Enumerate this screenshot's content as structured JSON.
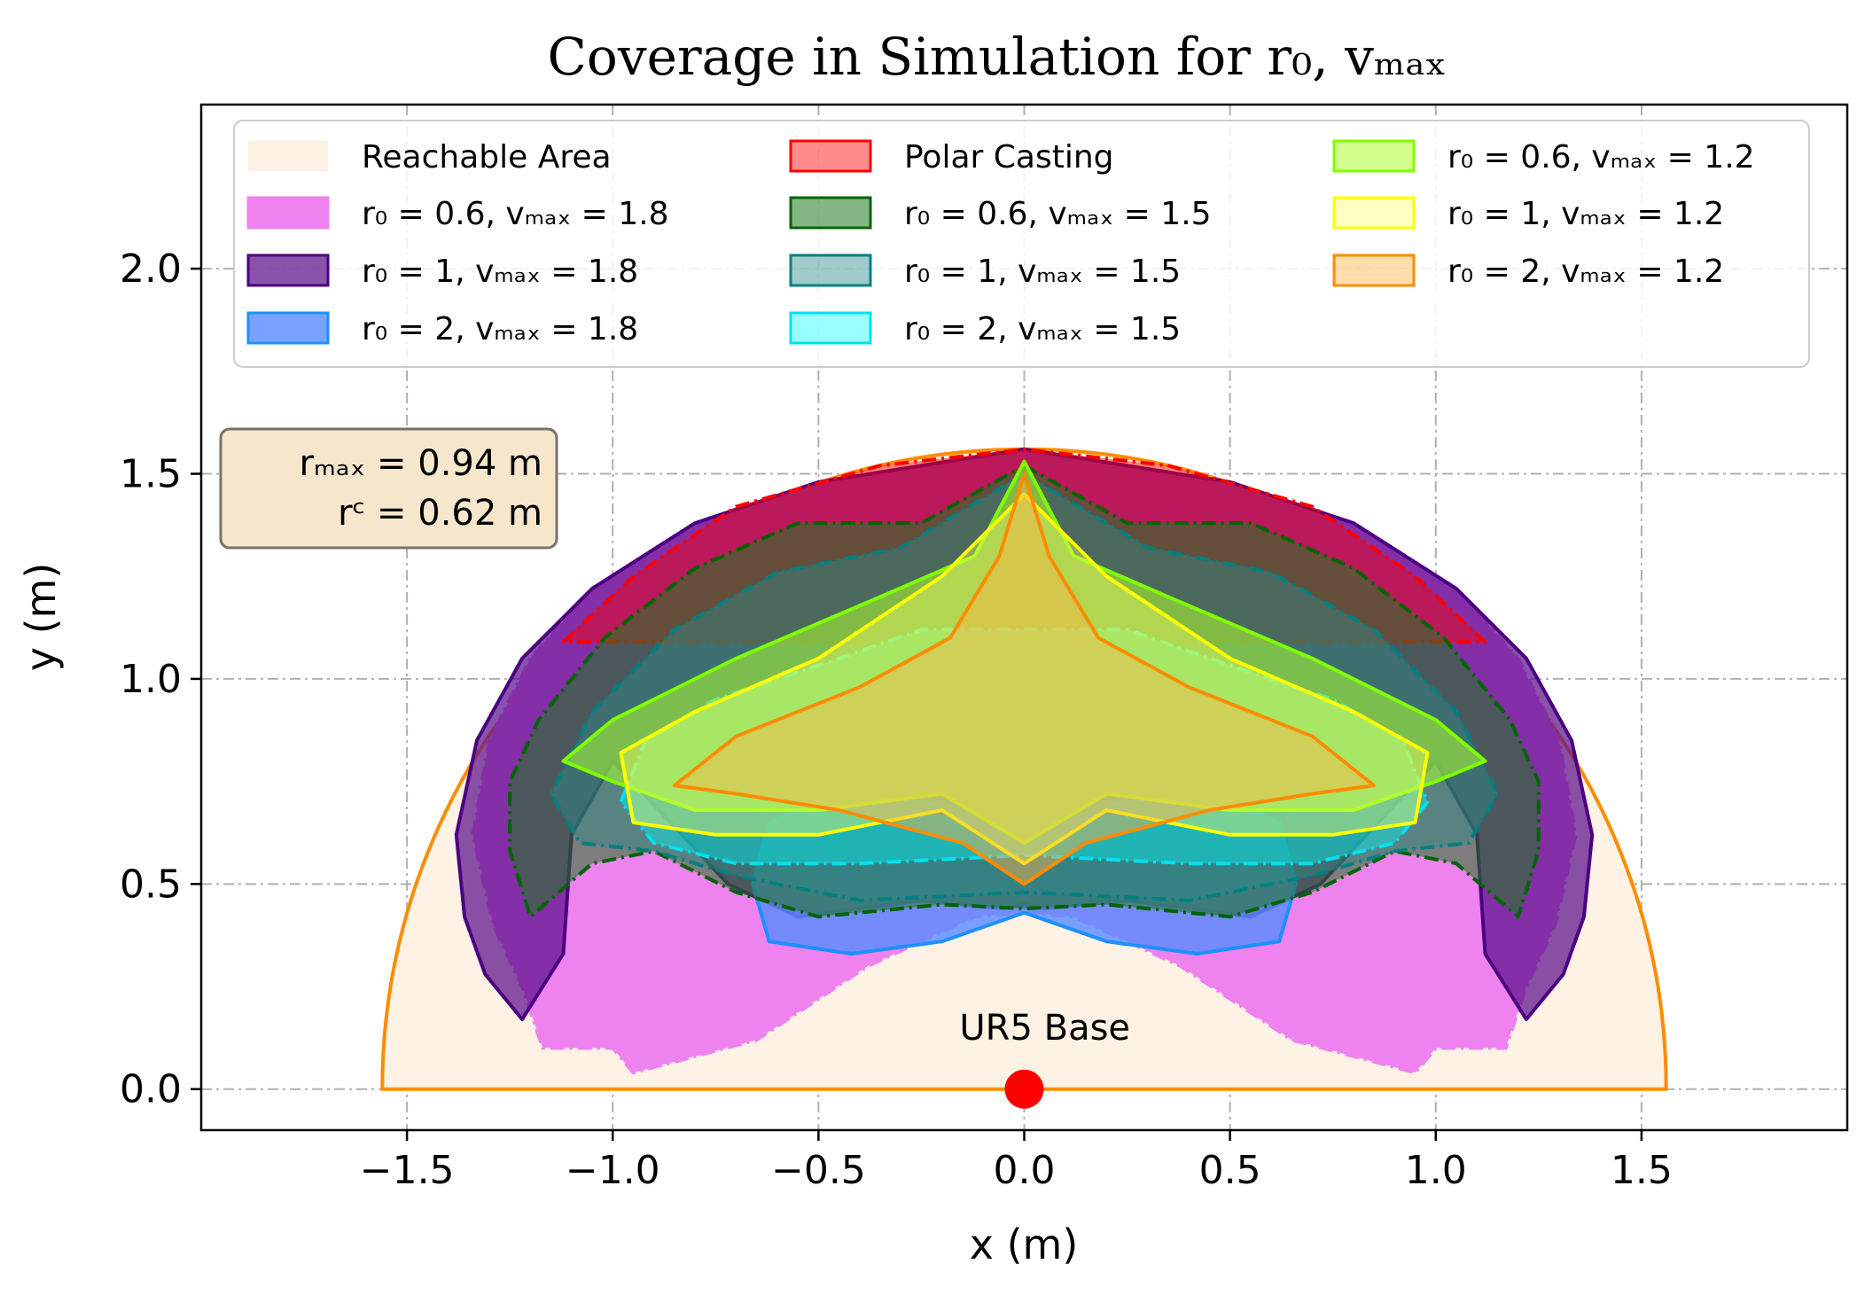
{
  "chart_data": {
    "type": "area",
    "title": "Coverage in Simulation for r₀, vₘₐₓ",
    "xlabel": "x (m)",
    "ylabel": "y (m)",
    "xlim": [
      -2.0,
      2.0
    ],
    "ylim": [
      -0.1,
      2.4
    ],
    "xticks": [
      -1.5,
      -1.0,
      -0.5,
      0.0,
      0.5,
      1.0,
      1.5
    ],
    "xtick_labels": [
      "−1.5",
      "−1.0",
      "−0.5",
      "0.0",
      "0.5",
      "1.0",
      "1.5"
    ],
    "yticks": [
      0.0,
      0.5,
      1.0,
      1.5,
      2.0
    ],
    "ytick_labels": [
      "0.0",
      "0.5",
      "1.0",
      "1.5",
      "2.0"
    ],
    "grid": true,
    "legend_position": "top",
    "annotation_box": [
      "rₘₐₓ = 0.94 m",
      "rᶜ = 0.62 m"
    ],
    "base_label": "UR5 Base",
    "base_point": [
      0.0,
      0.0
    ],
    "colors": {
      "reachable_fill": "#fdf2e3",
      "reachable_edge": "#ff8c00",
      "base_point": "#ff0000",
      "annotation_box_fill": "#f5e6cc"
    },
    "series": [
      {
        "name": "Reachable Area",
        "style": "semicircle",
        "radius": 1.56,
        "fill": "#fdf2e3",
        "edge": "#ff8c00",
        "opacity": 1.0,
        "dash": "solid",
        "points": []
      },
      {
        "name": "r₀ = 0.6, vₘₐₓ = 1.8",
        "fill": "#ee82ee",
        "edge": "#ee82ee",
        "opacity": 1.0,
        "dash": "dashdot",
        "points": [
          [
            0,
            1.56
          ],
          [
            0.5,
            1.48
          ],
          [
            0.8,
            1.38
          ],
          [
            1.05,
            1.22
          ],
          [
            1.2,
            1.05
          ],
          [
            1.3,
            0.85
          ],
          [
            1.34,
            0.62
          ],
          [
            1.29,
            0.4
          ],
          [
            1.22,
            0.25
          ],
          [
            1.17,
            0.1
          ],
          [
            1.0,
            0.1
          ],
          [
            0.95,
            0.04
          ],
          [
            0.65,
            0.12
          ],
          [
            0.38,
            0.3
          ],
          [
            0.12,
            0.42
          ],
          [
            0,
            0.43
          ],
          [
            -0.12,
            0.42
          ],
          [
            -0.38,
            0.3
          ],
          [
            -0.65,
            0.12
          ],
          [
            -0.95,
            0.04
          ],
          [
            -1.0,
            0.1
          ],
          [
            -1.17,
            0.1
          ],
          [
            -1.22,
            0.25
          ],
          [
            -1.29,
            0.4
          ],
          [
            -1.34,
            0.62
          ],
          [
            -1.3,
            0.85
          ],
          [
            -1.2,
            1.05
          ],
          [
            -1.05,
            1.22
          ],
          [
            -0.8,
            1.38
          ],
          [
            -0.5,
            1.48
          ]
        ]
      },
      {
        "name": "r₀ = 1, vₘₐₓ = 1.8",
        "fill": "#5b0f8c",
        "edge": "#4b0082",
        "opacity": 0.72,
        "dash": "solid",
        "points": [
          [
            0,
            1.56
          ],
          [
            0.5,
            1.48
          ],
          [
            0.8,
            1.38
          ],
          [
            1.05,
            1.22
          ],
          [
            1.22,
            1.05
          ],
          [
            1.33,
            0.85
          ],
          [
            1.38,
            0.62
          ],
          [
            1.36,
            0.42
          ],
          [
            1.31,
            0.28
          ],
          [
            1.22,
            0.17
          ],
          [
            1.12,
            0.33
          ],
          [
            1.1,
            0.62
          ],
          [
            1.0,
            0.8
          ],
          [
            0.72,
            0.5
          ],
          [
            0.55,
            0.42
          ],
          [
            0.25,
            0.46
          ],
          [
            0.05,
            0.44
          ],
          [
            0,
            0.45
          ],
          [
            -0.05,
            0.44
          ],
          [
            -0.25,
            0.46
          ],
          [
            -0.55,
            0.42
          ],
          [
            -0.72,
            0.5
          ],
          [
            -1.0,
            0.8
          ],
          [
            -1.1,
            0.62
          ],
          [
            -1.12,
            0.33
          ],
          [
            -1.22,
            0.17
          ],
          [
            -1.31,
            0.28
          ],
          [
            -1.36,
            0.42
          ],
          [
            -1.38,
            0.62
          ],
          [
            -1.33,
            0.85
          ],
          [
            -1.22,
            1.05
          ],
          [
            -1.05,
            1.22
          ],
          [
            -0.8,
            1.38
          ],
          [
            -0.5,
            1.48
          ]
        ]
      },
      {
        "name": "r₀ = 2, vₘₐₓ = 1.8",
        "fill": "#5a8dff",
        "edge": "#1e90ff",
        "opacity": 0.82,
        "dash": "solid",
        "points": [
          [
            0,
            0.43
          ],
          [
            0.2,
            0.36
          ],
          [
            0.42,
            0.33
          ],
          [
            0.62,
            0.36
          ],
          [
            0.66,
            0.5
          ],
          [
            0.62,
            0.65
          ],
          [
            0.45,
            0.72
          ],
          [
            0.25,
            0.7
          ],
          [
            0,
            0.66
          ],
          [
            -0.25,
            0.7
          ],
          [
            -0.45,
            0.72
          ],
          [
            -0.62,
            0.65
          ],
          [
            -0.66,
            0.5
          ],
          [
            -0.62,
            0.36
          ],
          [
            -0.42,
            0.33
          ],
          [
            -0.2,
            0.36
          ]
        ]
      },
      {
        "name": "Polar Casting",
        "fill": "#ff0000",
        "edge": "#ff0000",
        "opacity": 0.45,
        "dash": "dashdot",
        "points": [
          [
            -1.12,
            1.09
          ],
          [
            -0.95,
            1.25
          ],
          [
            -0.7,
            1.42
          ],
          [
            -0.35,
            1.52
          ],
          [
            0,
            1.56
          ],
          [
            0.35,
            1.52
          ],
          [
            0.7,
            1.42
          ],
          [
            0.95,
            1.25
          ],
          [
            1.12,
            1.09
          ]
        ]
      },
      {
        "name": "r₀ = 0.6, vₘₐₓ = 1.5",
        "fill": "#1f7a1f",
        "edge": "#006400",
        "opacity": 0.55,
        "dash": "dashdot",
        "points": [
          [
            0,
            1.52
          ],
          [
            0.25,
            1.38
          ],
          [
            0.55,
            1.38
          ],
          [
            0.8,
            1.27
          ],
          [
            1.02,
            1.1
          ],
          [
            1.18,
            0.9
          ],
          [
            1.25,
            0.75
          ],
          [
            1.25,
            0.58
          ],
          [
            1.2,
            0.42
          ],
          [
            1.05,
            0.55
          ],
          [
            0.9,
            0.58
          ],
          [
            0.7,
            0.48
          ],
          [
            0.5,
            0.42
          ],
          [
            0.2,
            0.45
          ],
          [
            0,
            0.44
          ],
          [
            -0.2,
            0.45
          ],
          [
            -0.5,
            0.42
          ],
          [
            -0.7,
            0.48
          ],
          [
            -0.9,
            0.58
          ],
          [
            -1.05,
            0.55
          ],
          [
            -1.2,
            0.42
          ],
          [
            -1.25,
            0.58
          ],
          [
            -1.25,
            0.75
          ],
          [
            -1.18,
            0.9
          ],
          [
            -1.02,
            1.1
          ],
          [
            -0.8,
            1.27
          ],
          [
            -0.55,
            1.38
          ],
          [
            -0.25,
            1.38
          ]
        ]
      },
      {
        "name": "r₀ = 1, vₘₐₓ = 1.5",
        "fill": "#2e8b8b",
        "edge": "#008080",
        "opacity": 0.45,
        "dash": "dashdot",
        "points": [
          [
            0,
            1.5
          ],
          [
            0.3,
            1.32
          ],
          [
            0.6,
            1.26
          ],
          [
            0.85,
            1.12
          ],
          [
            1.05,
            0.92
          ],
          [
            1.15,
            0.72
          ],
          [
            1.08,
            0.6
          ],
          [
            0.9,
            0.58
          ],
          [
            0.7,
            0.52
          ],
          [
            0.4,
            0.46
          ],
          [
            0,
            0.48
          ],
          [
            -0.4,
            0.46
          ],
          [
            -0.7,
            0.52
          ],
          [
            -0.9,
            0.58
          ],
          [
            -1.08,
            0.6
          ],
          [
            -1.15,
            0.72
          ],
          [
            -1.05,
            0.92
          ],
          [
            -0.85,
            1.12
          ],
          [
            -0.6,
            1.26
          ],
          [
            -0.3,
            1.32
          ]
        ]
      },
      {
        "name": "r₀ = 2, vₘₐₓ = 1.5",
        "fill": "#00ffff",
        "edge": "#00e0f0",
        "opacity": 0.4,
        "dash": "dashdot",
        "points": [
          [
            0,
            1.12
          ],
          [
            0.25,
            1.12
          ],
          [
            0.45,
            1.05
          ],
          [
            0.75,
            0.95
          ],
          [
            0.92,
            0.85
          ],
          [
            0.98,
            0.7
          ],
          [
            0.9,
            0.6
          ],
          [
            0.7,
            0.55
          ],
          [
            0.4,
            0.55
          ],
          [
            0,
            0.57
          ],
          [
            -0.4,
            0.55
          ],
          [
            -0.7,
            0.55
          ],
          [
            -0.9,
            0.6
          ],
          [
            -0.98,
            0.7
          ],
          [
            -0.92,
            0.85
          ],
          [
            -0.75,
            0.95
          ],
          [
            -0.45,
            1.05
          ],
          [
            -0.25,
            1.12
          ]
        ]
      },
      {
        "name": "r₀ = 0.6, vₘₐₓ = 1.2",
        "fill": "#adff2f",
        "edge": "#7fff00",
        "opacity": 0.55,
        "dash": "solid",
        "points": [
          [
            0,
            1.53
          ],
          [
            0.12,
            1.3
          ],
          [
            0.35,
            1.2
          ],
          [
            0.7,
            1.05
          ],
          [
            1.0,
            0.9
          ],
          [
            1.12,
            0.8
          ],
          [
            1.0,
            0.75
          ],
          [
            0.8,
            0.68
          ],
          [
            0.5,
            0.68
          ],
          [
            0.2,
            0.72
          ],
          [
            0,
            0.6
          ],
          [
            -0.2,
            0.72
          ],
          [
            -0.5,
            0.68
          ],
          [
            -0.8,
            0.68
          ],
          [
            -1.0,
            0.75
          ],
          [
            -1.12,
            0.8
          ],
          [
            -1.0,
            0.9
          ],
          [
            -0.7,
            1.05
          ],
          [
            -0.35,
            1.2
          ],
          [
            -0.12,
            1.3
          ]
        ]
      },
      {
        "name": "r₀ = 1, vₘₐₓ = 1.2",
        "fill": "#ffff66",
        "edge": "#ffff00",
        "opacity": 0.4,
        "dash": "solid",
        "points": [
          [
            0,
            1.45
          ],
          [
            0.2,
            1.25
          ],
          [
            0.5,
            1.05
          ],
          [
            0.8,
            0.92
          ],
          [
            0.98,
            0.82
          ],
          [
            0.95,
            0.65
          ],
          [
            0.75,
            0.62
          ],
          [
            0.5,
            0.62
          ],
          [
            0.2,
            0.68
          ],
          [
            0,
            0.55
          ],
          [
            -0.2,
            0.68
          ],
          [
            -0.5,
            0.62
          ],
          [
            -0.75,
            0.62
          ],
          [
            -0.95,
            0.65
          ],
          [
            -0.98,
            0.82
          ],
          [
            -0.8,
            0.92
          ],
          [
            -0.5,
            1.05
          ],
          [
            -0.2,
            1.25
          ]
        ]
      },
      {
        "name": "r₀ = 2, vₘₐₓ = 1.2",
        "fill": "#ffb347",
        "edge": "#ff8c00",
        "opacity": 0.45,
        "dash": "solid",
        "points": [
          [
            0,
            1.5
          ],
          [
            0.06,
            1.3
          ],
          [
            0.18,
            1.1
          ],
          [
            0.4,
            0.98
          ],
          [
            0.7,
            0.86
          ],
          [
            0.85,
            0.74
          ],
          [
            0.7,
            0.72
          ],
          [
            0.45,
            0.68
          ],
          [
            0.15,
            0.6
          ],
          [
            0,
            0.5
          ],
          [
            -0.15,
            0.6
          ],
          [
            -0.45,
            0.68
          ],
          [
            -0.7,
            0.72
          ],
          [
            -0.85,
            0.74
          ],
          [
            -0.7,
            0.86
          ],
          [
            -0.4,
            0.98
          ],
          [
            -0.18,
            1.1
          ],
          [
            -0.06,
            1.3
          ]
        ]
      }
    ]
  }
}
